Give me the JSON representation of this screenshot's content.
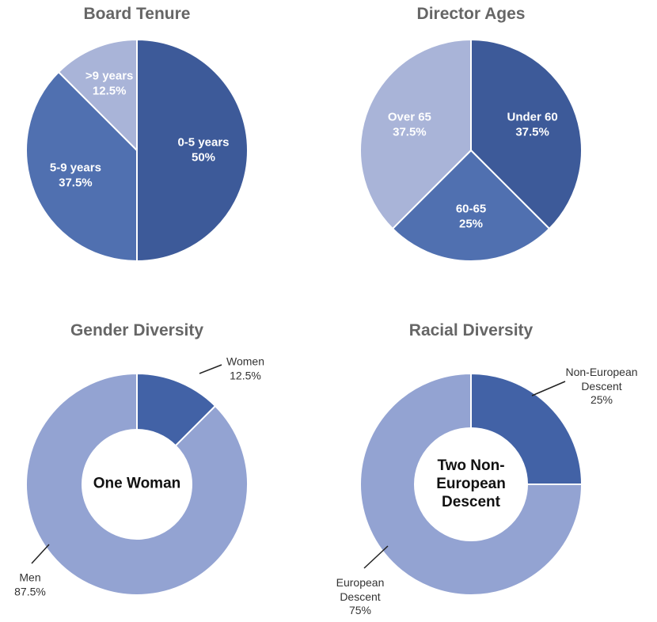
{
  "chart_data": [
    {
      "type": "pie",
      "title": "Board Tenure",
      "categories": [
        "0-5 years",
        "5-9 years",
        ">9 years"
      ],
      "values": [
        50,
        37.5,
        12.5
      ],
      "value_labels": [
        "50%",
        "37.5%",
        "12.5%"
      ],
      "colors": [
        "#3d5a99",
        "#5070b0",
        "#a9b4d8"
      ]
    },
    {
      "type": "pie",
      "title": "Director Ages",
      "categories": [
        "Under 60",
        "60-65",
        "Over 65"
      ],
      "values": [
        37.5,
        25,
        37.5
      ],
      "value_labels": [
        "37.5%",
        "25%",
        "37.5%"
      ],
      "colors": [
        "#3d5a99",
        "#5070b0",
        "#a9b4d8"
      ]
    },
    {
      "type": "donut",
      "title": "Gender Diversity",
      "center_label": "One Woman",
      "categories": [
        "Women",
        "Men"
      ],
      "values": [
        12.5,
        87.5
      ],
      "value_labels": [
        "12.5%",
        "87.5%"
      ],
      "colors": [
        "#4262a6",
        "#93a3d2"
      ]
    },
    {
      "type": "donut",
      "title": "Racial Diversity",
      "center_label": "Two Non-European Descent",
      "categories": [
        "Non-European Descent",
        "European Descent"
      ],
      "values": [
        25,
        75
      ],
      "value_labels": [
        "25%",
        "75%"
      ],
      "colors": [
        "#4262a6",
        "#93a3d2"
      ]
    }
  ]
}
